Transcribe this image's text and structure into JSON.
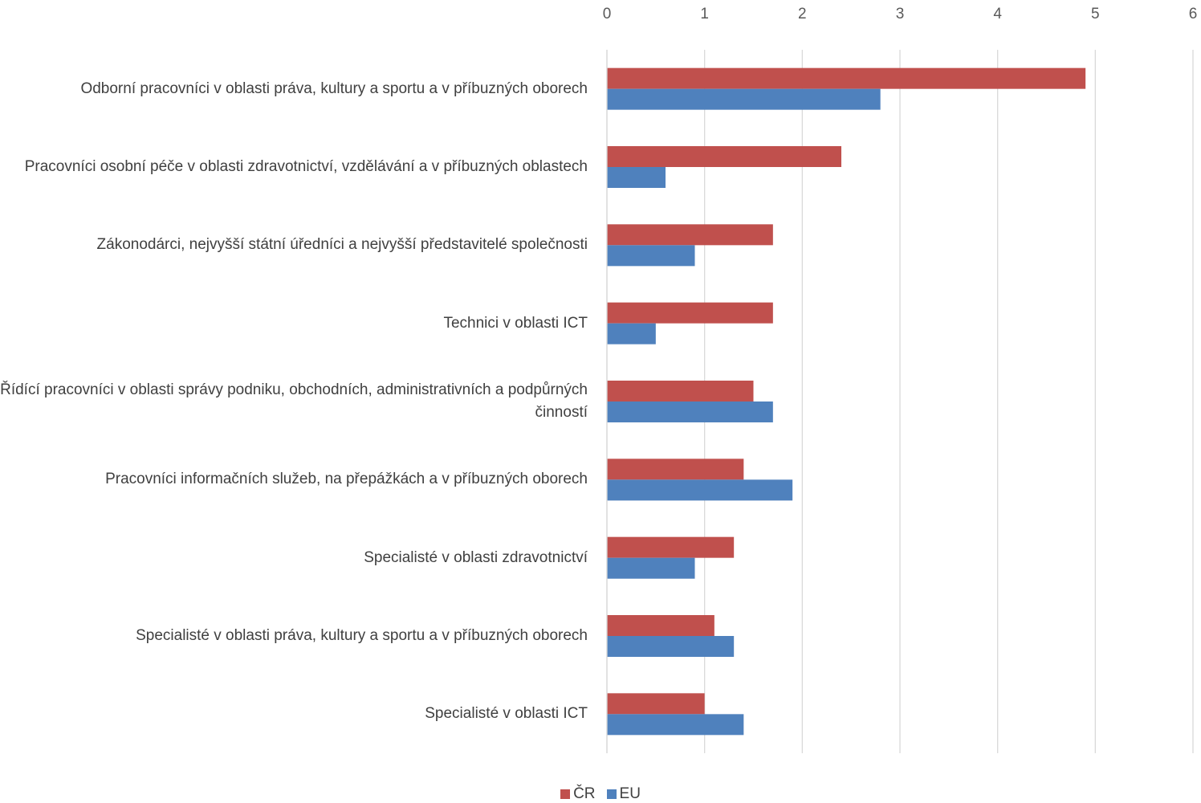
{
  "chart_data": {
    "type": "bar",
    "orientation": "horizontal",
    "categories": [
      "Odborní pracovníci v oblasti práva, kultury a sportu a v příbuzných oborech",
      "Pracovníci osobní péče v oblasti zdravotnictví, vzdělávání a v příbuzných oblastech",
      "Zákonodárci, nejvyšší státní úředníci a nejvyšší představitelé společnosti",
      "Technici v oblasti ICT",
      "Řídící pracovníci v oblasti správy podniku, obchodních, administrativních a podpůrných činností",
      "Pracovníci informačních služeb, na přepážkách a v příbuzných oborech",
      "Specialisté v oblasti zdravotnictví",
      "Specialisté v oblasti práva, kultury a sportu a v příbuzných oborech",
      "Specialisté v oblasti ICT"
    ],
    "series": [
      {
        "name": "ČR",
        "color": "#c0504d",
        "values": [
          4.9,
          2.4,
          1.7,
          1.7,
          1.5,
          1.4,
          1.3,
          1.1,
          1.0
        ]
      },
      {
        "name": "EU",
        "color": "#4f81bd",
        "values": [
          2.8,
          0.6,
          0.9,
          0.5,
          1.7,
          1.9,
          0.9,
          1.3,
          1.4
        ]
      }
    ],
    "xlim": [
      0,
      6
    ],
    "ticks": [
      0,
      1,
      2,
      3,
      4,
      5,
      6
    ],
    "axis_position": "top",
    "grid": true,
    "legend_position": "bottom"
  }
}
